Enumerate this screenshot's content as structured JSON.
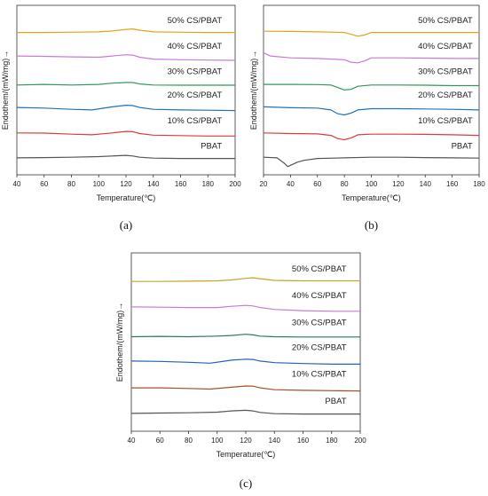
{
  "chart_data": [
    {
      "type": "line",
      "panel_label": "(a)",
      "xlabel": "Temperature(℃)",
      "ylabel": "Endothem/(mW/mg)→",
      "xlim": [
        40,
        200
      ],
      "xticks": [
        "40",
        "60",
        "80",
        "100",
        "120",
        "140",
        "160",
        "180",
        "200"
      ],
      "series": [
        {
          "name": "50% CS/PBAT",
          "color": "#e6a31a",
          "offset": 5,
          "x": [
            40,
            60,
            80,
            100,
            110,
            120,
            125,
            130,
            140,
            160,
            180,
            200
          ],
          "y": [
            0,
            0,
            0.02,
            0.05,
            0.12,
            0.25,
            0.28,
            0.18,
            0.05,
            0.02,
            0,
            0
          ]
        },
        {
          "name": "40% CS/PBAT",
          "color": "#c77bd8",
          "offset": 4,
          "x": [
            40,
            60,
            80,
            100,
            110,
            120,
            125,
            130,
            140,
            160,
            180,
            200
          ],
          "y": [
            0.15,
            0.12,
            0.08,
            0.05,
            0.15,
            0.25,
            0.22,
            0.05,
            -0.1,
            -0.15,
            -0.18,
            -0.2
          ]
        },
        {
          "name": "30% CS/PBAT",
          "color": "#2e9a5a",
          "offset": 3,
          "x": [
            40,
            60,
            80,
            100,
            110,
            120,
            125,
            130,
            140,
            160,
            180,
            200
          ],
          "y": [
            0,
            0.05,
            0,
            0.05,
            0.15,
            0.2,
            0.2,
            0.08,
            0,
            -0.02,
            -0.02,
            -0.02
          ]
        },
        {
          "name": "20% CS/PBAT",
          "color": "#2272b6",
          "offset": 2,
          "x": [
            40,
            60,
            80,
            95,
            110,
            120,
            125,
            130,
            140,
            160,
            180,
            200
          ],
          "y": [
            0.1,
            0.05,
            -0.05,
            -0.1,
            0.15,
            0.28,
            0.25,
            0.1,
            -0.05,
            -0.1,
            -0.12,
            -0.15
          ]
        },
        {
          "name": "10% CS/PBAT",
          "color": "#e03a3a",
          "offset": 1,
          "x": [
            40,
            60,
            80,
            95,
            110,
            120,
            125,
            130,
            140,
            160,
            180,
            200
          ],
          "y": [
            0.1,
            0.08,
            0,
            -0.05,
            0.1,
            0.22,
            0.2,
            0.05,
            -0.08,
            -0.12,
            -0.15,
            -0.15
          ]
        },
        {
          "name": "PBAT",
          "color": "#555555",
          "offset": 0,
          "x": [
            40,
            60,
            80,
            100,
            110,
            120,
            125,
            130,
            140,
            160,
            180,
            200
          ],
          "y": [
            0,
            0.02,
            0.05,
            0.1,
            0.15,
            0.2,
            0.15,
            0.05,
            -0.02,
            -0.05,
            -0.05,
            -0.05
          ]
        }
      ]
    },
    {
      "type": "line",
      "panel_label": "(b)",
      "xlabel": "Temperature(℃)",
      "ylabel": "Endothem/(mW/mg)→",
      "xlim": [
        20,
        180
      ],
      "xticks": [
        "20",
        "40",
        "60",
        "80",
        "100",
        "120",
        "140",
        "160",
        "180"
      ],
      "series": [
        {
          "name": "50% CS/PBAT",
          "color": "#e6a31a",
          "offset": 5,
          "x": [
            20,
            40,
            60,
            80,
            85,
            90,
            95,
            100,
            120,
            140,
            160,
            180
          ],
          "y": [
            0.1,
            0.08,
            0.05,
            0,
            -0.15,
            -0.3,
            -0.2,
            0,
            0,
            0,
            0,
            0
          ]
        },
        {
          "name": "40% CS/PBAT",
          "color": "#c77bd8",
          "offset": 4,
          "x": [
            20,
            25,
            40,
            60,
            80,
            85,
            90,
            95,
            100,
            120,
            140,
            160,
            180
          ],
          "y": [
            0.4,
            0.15,
            0,
            -0.05,
            -0.15,
            -0.35,
            -0.4,
            -0.25,
            0,
            0,
            -0.02,
            -0.05,
            -0.05
          ]
        },
        {
          "name": "30% CS/PBAT",
          "color": "#2e9a5a",
          "offset": 3,
          "x": [
            20,
            40,
            60,
            70,
            75,
            80,
            85,
            90,
            100,
            120,
            140,
            160,
            180
          ],
          "y": [
            0.05,
            0.05,
            0.03,
            0,
            -0.2,
            -0.4,
            -0.35,
            -0.1,
            0,
            0,
            -0.02,
            -0.05,
            -0.05
          ]
        },
        {
          "name": "20% CS/PBAT",
          "color": "#2272b6",
          "offset": 2,
          "x": [
            20,
            40,
            60,
            70,
            75,
            80,
            85,
            90,
            100,
            120,
            140,
            160,
            180
          ],
          "y": [
            0.15,
            0.08,
            0.05,
            -0.1,
            -0.4,
            -0.5,
            -0.35,
            -0.1,
            0,
            0,
            -0.02,
            -0.05,
            -0.1
          ]
        },
        {
          "name": "10% CS/PBAT",
          "color": "#e03a3a",
          "offset": 1,
          "x": [
            20,
            40,
            60,
            70,
            75,
            80,
            85,
            90,
            100,
            120,
            140,
            160,
            180
          ],
          "y": [
            0.1,
            0.05,
            0.02,
            -0.1,
            -0.35,
            -0.45,
            -0.3,
            -0.05,
            0,
            0,
            -0.02,
            -0.05,
            -0.1
          ]
        },
        {
          "name": "PBAT",
          "color": "#555555",
          "offset": 0,
          "x": [
            20,
            30,
            35,
            38,
            40,
            45,
            50,
            60,
            80,
            100,
            120,
            140,
            160,
            180
          ],
          "y": [
            0.05,
            0,
            -0.4,
            -0.7,
            -0.6,
            -0.35,
            -0.2,
            -0.05,
            0,
            0.05,
            0.05,
            0.02,
            0,
            -0.02
          ]
        }
      ]
    },
    {
      "type": "line",
      "panel_label": "(c)",
      "xlabel": "Temperature(℃)",
      "ylabel": "Endothem/(mW/mg)→",
      "xlim": [
        40,
        200
      ],
      "xticks": [
        "40",
        "60",
        "80",
        "100",
        "120",
        "140",
        "160",
        "180",
        "200"
      ],
      "series": [
        {
          "name": "50% CS/PBAT",
          "color": "#c9a227",
          "offset": 5,
          "x": [
            40,
            60,
            80,
            100,
            110,
            120,
            125,
            130,
            140,
            160,
            180,
            200
          ],
          "y": [
            0,
            0,
            0.02,
            0.05,
            0.12,
            0.25,
            0.3,
            0.22,
            0.08,
            0.05,
            0.05,
            0.05
          ]
        },
        {
          "name": "40% CS/PBAT",
          "color": "#c77bd8",
          "offset": 4,
          "x": [
            40,
            60,
            80,
            100,
            110,
            120,
            125,
            130,
            140,
            160,
            180,
            200
          ],
          "y": [
            0.1,
            0.08,
            0.05,
            0.05,
            0.15,
            0.22,
            0.18,
            0.05,
            -0.1,
            -0.2,
            -0.25,
            -0.25
          ]
        },
        {
          "name": "30% CS/PBAT",
          "color": "#2e7a5a",
          "offset": 3,
          "x": [
            40,
            60,
            80,
            100,
            110,
            120,
            125,
            130,
            140,
            160,
            180,
            200
          ],
          "y": [
            0,
            0.03,
            0,
            0.05,
            0.1,
            0.2,
            0.15,
            0.05,
            0,
            -0.02,
            -0.02,
            -0.02
          ]
        },
        {
          "name": "20% CS/PBAT",
          "color": "#2262b6",
          "offset": 2,
          "x": [
            40,
            60,
            80,
            95,
            110,
            120,
            125,
            130,
            140,
            160,
            180,
            200
          ],
          "y": [
            0.05,
            0.02,
            -0.05,
            -0.12,
            0.12,
            0.2,
            0.18,
            0.05,
            -0.08,
            -0.15,
            -0.2,
            -0.2
          ]
        },
        {
          "name": "10% CS/PBAT",
          "color": "#a0522d",
          "offset": 1,
          "x": [
            40,
            60,
            80,
            95,
            110,
            120,
            125,
            130,
            140,
            160,
            180,
            200
          ],
          "y": [
            0.05,
            0.05,
            0,
            -0.05,
            0.1,
            0.2,
            0.18,
            0.05,
            -0.1,
            -0.15,
            -0.18,
            -0.2
          ]
        },
        {
          "name": "PBAT",
          "color": "#555555",
          "offset": 0,
          "x": [
            40,
            60,
            80,
            100,
            110,
            120,
            125,
            130,
            140,
            160,
            180,
            200
          ],
          "y": [
            0,
            0.03,
            0.05,
            0.1,
            0.2,
            0.25,
            0.2,
            0.08,
            -0.02,
            -0.05,
            -0.05,
            -0.05
          ]
        }
      ]
    }
  ]
}
